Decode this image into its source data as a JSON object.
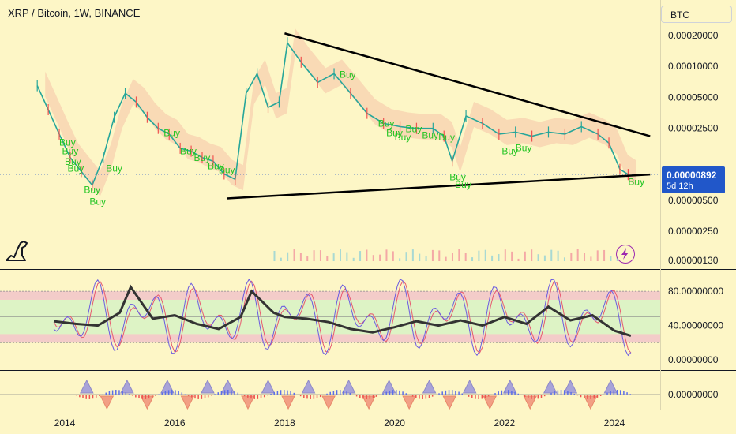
{
  "header": {
    "title": "XRP / Bitcoin, 1W, BINANCE",
    "symbol": "BTC"
  },
  "price_tag": {
    "value": "0.00000892",
    "countdown": "5d 12h"
  },
  "colors": {
    "background": "#fdf6c6",
    "candle_up": "#26a69a",
    "candle_down": "#ef5350",
    "buy_label": "#22c522",
    "price_tag": "#2157c9",
    "rsi_fast": "#6b5be0",
    "rsi_slow": "#e8596f",
    "rsi_avg": "#333333",
    "band_green": "#d9f3c4",
    "band_pink": "#f2c8c9"
  },
  "icons": {
    "logo": "dinosaur-icon",
    "bolt": "lightning-icon"
  },
  "chart_data": [
    {
      "type": "line",
      "title": "XRP / Bitcoin, 1W, BINANCE",
      "scale": "log",
      "x_ticks": [
        "2014",
        "2016",
        "2018",
        "2020",
        "2022",
        "2024"
      ],
      "y_ticks": [
        "0.00020000",
        "0.00010000",
        "0.00005000",
        "0.00002500",
        "0.00000500",
        "0.00000250",
        "0.00000130"
      ],
      "last_price": "0.00000892",
      "series": [
        {
          "x": [
            2013.5,
            2013.7,
            2013.9,
            2014.1,
            2014.3,
            2014.5,
            2014.7,
            2014.9,
            2015.1,
            2015.3,
            2015.5,
            2015.7,
            2015.9,
            2016.1,
            2016.3,
            2016.5,
            2016.7,
            2016.9,
            2017.1,
            2017.3,
            2017.5,
            2017.7,
            2017.9,
            2018.05,
            2018.3,
            2018.6,
            2018.9,
            2019.2,
            2019.5,
            2019.8,
            2020.1,
            2020.4,
            2020.7,
            2020.9,
            2021.05,
            2021.3,
            2021.6,
            2021.9,
            2022.2,
            2022.5,
            2022.8,
            2023.1,
            2023.4,
            2023.7,
            2023.9,
            2024.1,
            2024.25
          ],
          "y": [
            6.5e-05,
            3.8e-05,
            2.2e-05,
            1.3e-05,
            9.5e-06,
            7e-06,
            1.3e-05,
            3.2e-05,
            5.5e-05,
            4.5e-05,
            3.2e-05,
            2.5e-05,
            2.2e-05,
            1.6e-05,
            1.5e-05,
            1.3e-05,
            1.2e-05,
            9e-06,
            8e-06,
            5.5e-05,
            8.5e-05,
            4e-05,
            4.5e-05,
            0.00017,
            0.00011,
            7e-05,
            8.5e-05,
            5.5e-05,
            3.5e-05,
            2.8e-05,
            2.6e-05,
            2.5e-05,
            2.5e-05,
            2.1e-05,
            1.2e-05,
            3.3e-05,
            2.8e-05,
            2.2e-05,
            2.3e-05,
            2.1e-05,
            2.3e-05,
            2.2e-05,
            2.6e-05,
            2.2e-05,
            1.8e-05,
            1e-05,
            8.9e-06
          ]
        }
      ],
      "trendlines": [
        {
          "x": [
            2018.0,
            2024.65
          ],
          "y": [
            0.00021,
            2.1e-05
          ]
        },
        {
          "x": [
            2016.95,
            2024.65
          ],
          "y": [
            5.2e-06,
            8.9e-06
          ]
        }
      ],
      "annotations": [
        {
          "text": "Buy",
          "x": 2013.9,
          "y": 1.7e-05
        },
        {
          "text": "Buy",
          "x": 2013.95,
          "y": 1.4e-05
        },
        {
          "text": "Buy",
          "x": 2014.0,
          "y": 1.1e-05
        },
        {
          "text": "Buy",
          "x": 2014.05,
          "y": 9.5e-06
        },
        {
          "text": "Buy",
          "x": 2014.35,
          "y": 5.9e-06
        },
        {
          "text": "Buy",
          "x": 2014.45,
          "y": 4.5e-06
        },
        {
          "text": "Buy",
          "x": 2014.75,
          "y": 9.5e-06
        },
        {
          "text": "Buy",
          "x": 2015.8,
          "y": 2.1e-05
        },
        {
          "text": "Buy",
          "x": 2016.1,
          "y": 1.4e-05
        },
        {
          "text": "Buy",
          "x": 2016.35,
          "y": 1.2e-05
        },
        {
          "text": "Buy",
          "x": 2016.6,
          "y": 1e-05
        },
        {
          "text": "Buy",
          "x": 2016.8,
          "y": 9.2e-06
        },
        {
          "text": "Buy",
          "x": 2019.0,
          "y": 7.8e-05
        },
        {
          "text": "Buy",
          "x": 2019.7,
          "y": 2.6e-05
        },
        {
          "text": "Buy",
          "x": 2019.85,
          "y": 2.1e-05
        },
        {
          "text": "Buy",
          "x": 2020.0,
          "y": 1.9e-05
        },
        {
          "text": "Buy",
          "x": 2020.2,
          "y": 2.3e-05
        },
        {
          "text": "Buy",
          "x": 2020.5,
          "y": 2e-05
        },
        {
          "text": "Buy",
          "x": 2020.8,
          "y": 1.9e-05
        },
        {
          "text": "Buy",
          "x": 2021.0,
          "y": 7.8e-06
        },
        {
          "text": "Buy",
          "x": 2021.1,
          "y": 6.6e-06
        },
        {
          "text": "Buy",
          "x": 2021.95,
          "y": 1.4e-05
        },
        {
          "text": "Buy",
          "x": 2022.2,
          "y": 1.5e-05
        },
        {
          "text": "Buy",
          "x": 2024.25,
          "y": 7e-06
        }
      ]
    },
    {
      "type": "line",
      "y_ticks": [
        "80.00000000",
        "40.00000000",
        "0.00000000"
      ],
      "ylim": [
        0,
        100
      ],
      "bands": [
        [
          70,
          80
        ],
        [
          20,
          30
        ]
      ],
      "series": [
        {
          "x": [
            2013.8,
            2014.2,
            2014.6,
            2015.0,
            2015.2,
            2015.6,
            2016.0,
            2016.4,
            2016.8,
            2017.2,
            2017.4,
            2017.8,
            2018.0,
            2018.4,
            2018.8,
            2019.2,
            2019.6,
            2020.0,
            2020.4,
            2020.8,
            2021.2,
            2021.6,
            2022.0,
            2022.4,
            2022.8,
            2023.2,
            2023.6,
            2024.0,
            2024.3
          ],
          "y": [
            45,
            42,
            40,
            55,
            85,
            48,
            52,
            42,
            36,
            50,
            80,
            55,
            50,
            48,
            44,
            36,
            32,
            38,
            45,
            40,
            46,
            40,
            50,
            42,
            62,
            46,
            52,
            34,
            28
          ]
        }
      ]
    },
    {
      "type": "bar",
      "y_ticks": [
        "0.00000000"
      ],
      "ylim": [
        -1,
        1
      ],
      "signals": [
        "up",
        "down",
        "up",
        "down",
        "up",
        "down",
        "up",
        "up",
        "down",
        "up",
        "down",
        "up",
        "down",
        "up",
        "down",
        "up",
        "down",
        "up",
        "down",
        "up",
        "down",
        "up",
        "down",
        "up",
        "up",
        "down",
        "up"
      ]
    }
  ]
}
